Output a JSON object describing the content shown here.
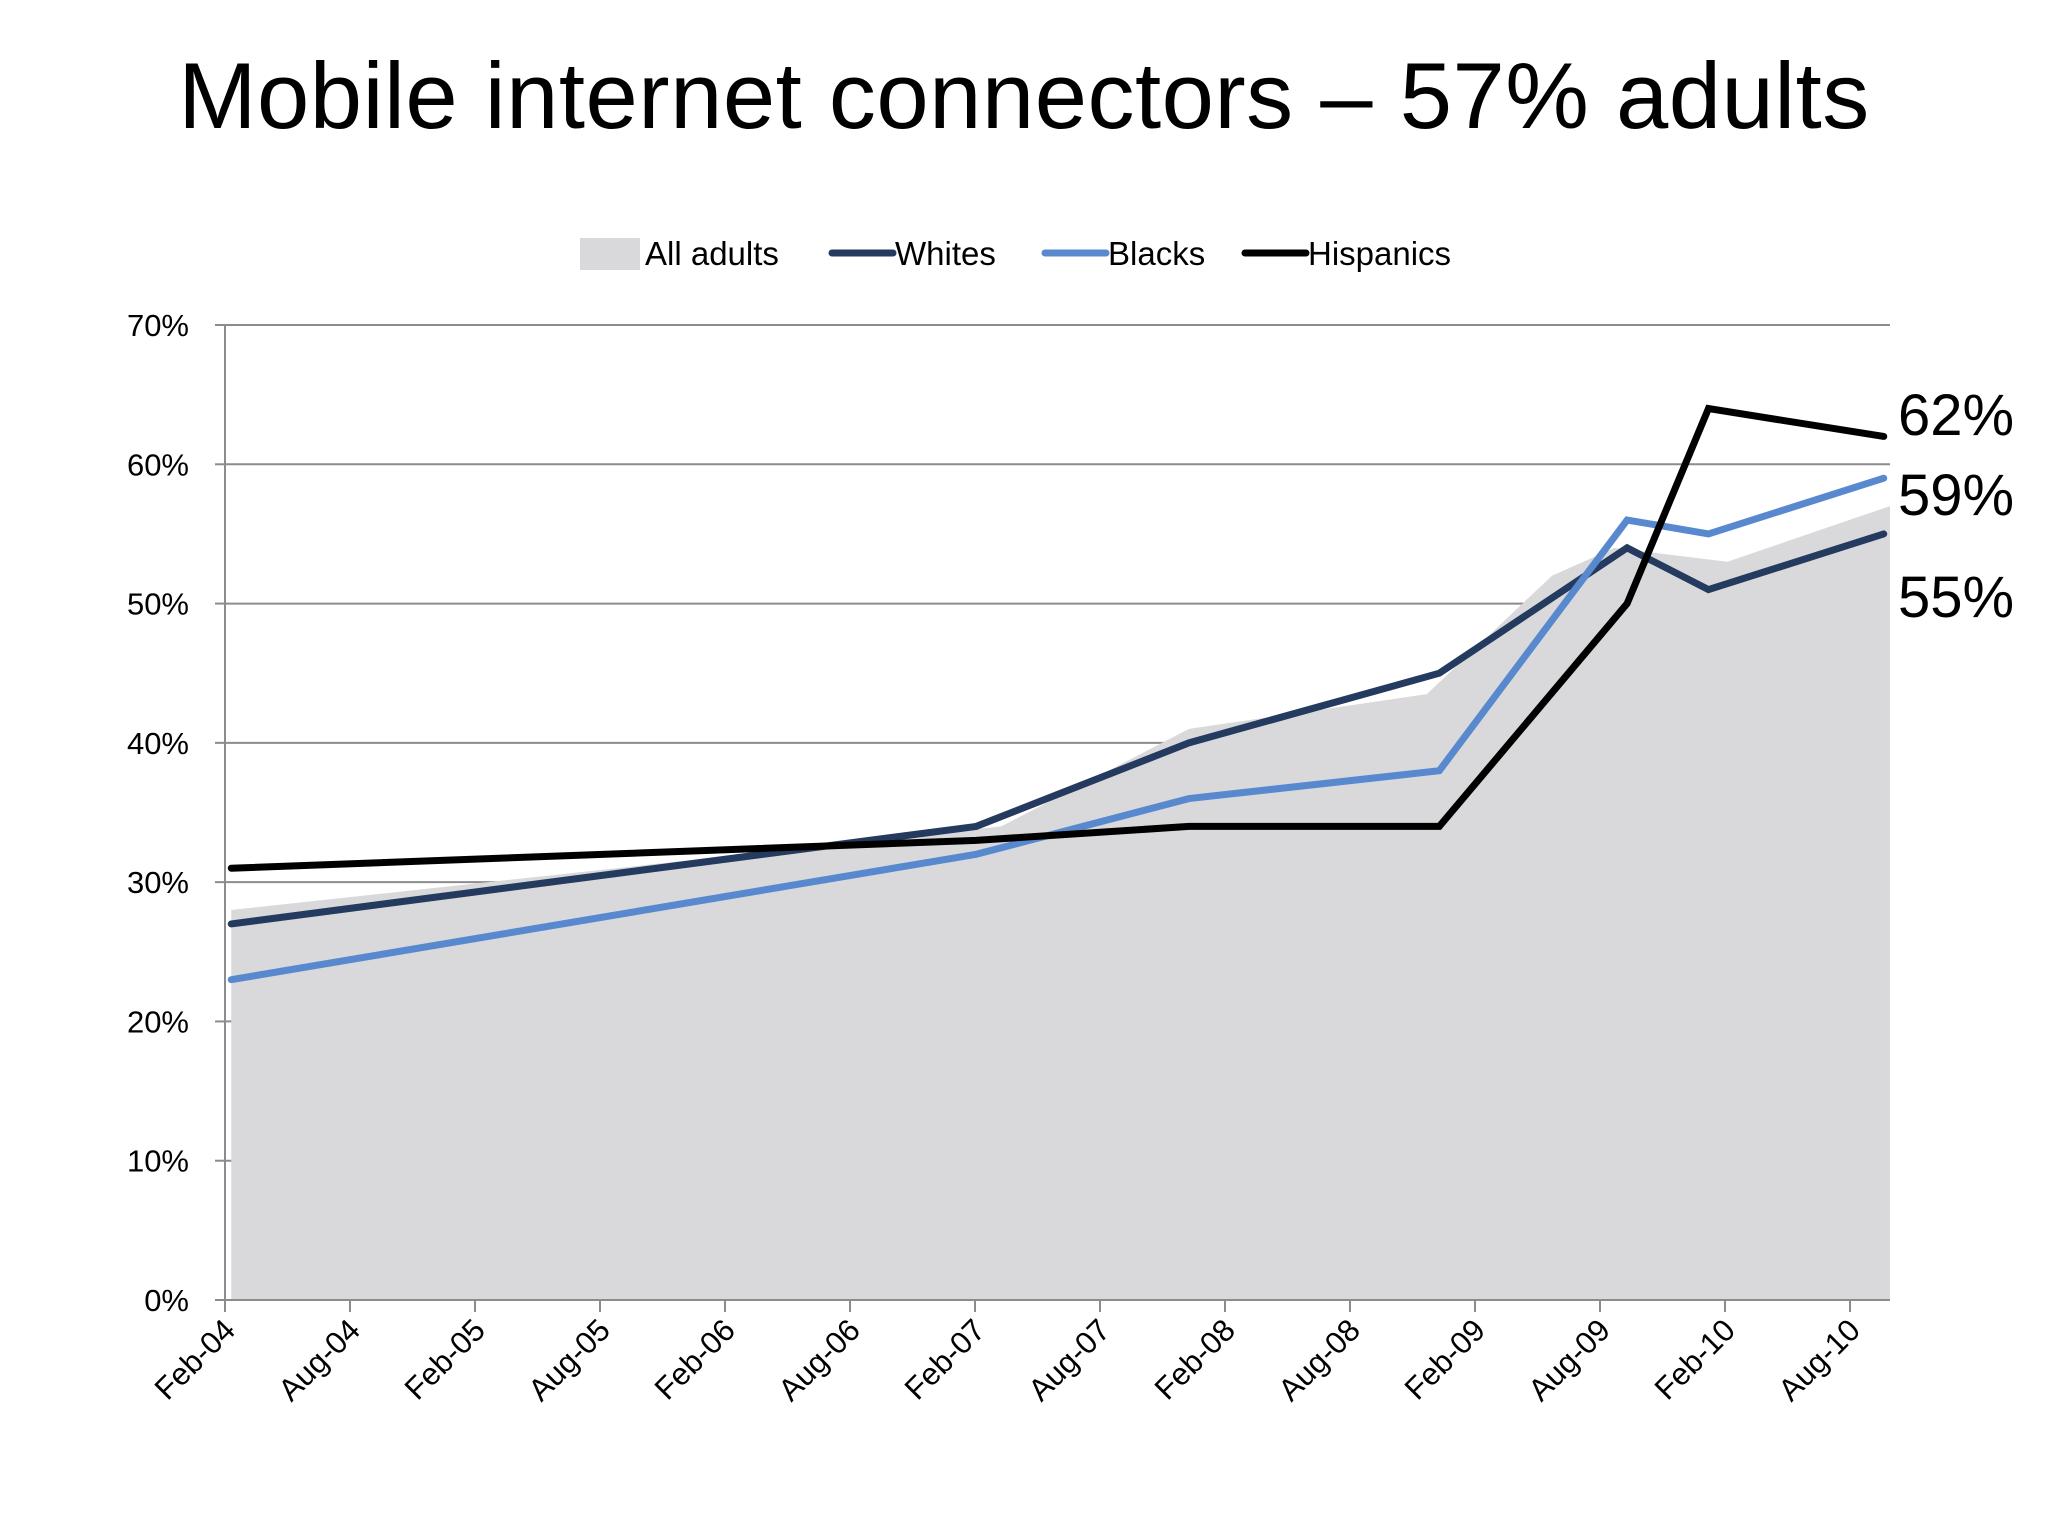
{
  "slide": {
    "title": "Mobile internet connectors – 57% adults"
  },
  "chart_data": {
    "type": "line",
    "title": "Mobile internet connectors – 57% adults",
    "xlabel": "",
    "ylabel": "",
    "ylim": [
      0,
      70
    ],
    "ytick_step": 10,
    "ytick_suffix": "%",
    "grid": true,
    "legend_position": "top-center",
    "categories": [
      "Feb-04",
      "Aug-04",
      "Feb-05",
      "Aug-05",
      "Feb-06",
      "Aug-06",
      "Feb-07",
      "Aug-07",
      "Feb-08",
      "Aug-08",
      "Feb-09",
      "Aug-09",
      "Feb-10",
      "Aug-10"
    ],
    "x_range": [
      0,
      13.3
    ],
    "area": {
      "name": "All adults",
      "color": "#d9d9db",
      "x": [
        0.05,
        6.2,
        7.7,
        9.6,
        10.6,
        11.1,
        12.0,
        13.3
      ],
      "values": [
        28,
        34,
        41,
        43.5,
        52,
        54,
        53,
        57
      ]
    },
    "series": [
      {
        "name": "Whites",
        "color": "#243a5e",
        "x": [
          0.05,
          6.0,
          7.7,
          9.7,
          11.2,
          11.85,
          13.25
        ],
        "values": [
          27,
          34,
          40,
          45,
          54,
          51,
          55
        ]
      },
      {
        "name": "Blacks",
        "color": "#5889cf",
        "x": [
          0.05,
          6.0,
          7.7,
          9.7,
          11.2,
          11.85,
          13.25
        ],
        "values": [
          23,
          32,
          36,
          38,
          56,
          55,
          59
        ]
      },
      {
        "name": "Hispanics",
        "color": "#000000",
        "x": [
          0.05,
          6.0,
          7.7,
          9.7,
          11.2,
          11.85,
          13.25
        ],
        "values": [
          31,
          33,
          34,
          34,
          50,
          64,
          62
        ]
      }
    ],
    "end_labels": [
      {
        "text": "62%",
        "value": 62
      },
      {
        "text": "59%",
        "value": 59
      },
      {
        "text": "55%",
        "value": 55
      }
    ]
  }
}
